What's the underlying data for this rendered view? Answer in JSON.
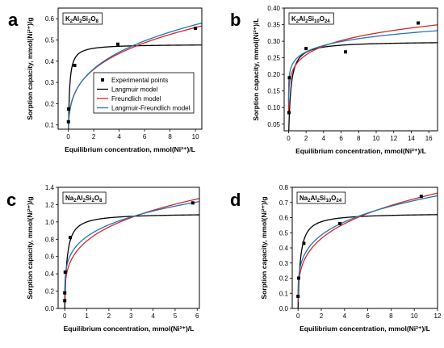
{
  "colors": {
    "langmuir": "#000000",
    "freundlich": "#d62728",
    "lf": "#1f77b4",
    "points": "#000000"
  },
  "legend": {
    "items": [
      {
        "label": "Experimental points",
        "kind": "marker"
      },
      {
        "label": "Langmuir model",
        "kind": "langmuir"
      },
      {
        "label": "Freundlich model",
        "kind": "freundlich"
      },
      {
        "label": "Langmuir-Freundlich model",
        "kind": "lf"
      }
    ]
  },
  "chart_data": [
    {
      "type": "scatter",
      "panel": "a",
      "formula": [
        "K",
        "2",
        "Al",
        "2",
        "Si",
        "2",
        "O",
        "8"
      ],
      "xlabel": "Equilibrium concentration, mmol(Ni²⁺)/L",
      "ylabel": "Sorption capacity, mmol(Ni²⁺)/g",
      "xlim": [
        -0.8,
        10.5
      ],
      "ylim": [
        0.08,
        0.65
      ],
      "xticks": [
        0,
        2,
        4,
        6,
        8,
        10
      ],
      "yticks": [
        0.1,
        0.2,
        0.3,
        0.4,
        0.5,
        0.6
      ],
      "yformat": 1,
      "points": [
        [
          0.01,
          0.115
        ],
        [
          0.02,
          0.175
        ],
        [
          0.5,
          0.38
        ],
        [
          3.9,
          0.48
        ],
        [
          10.0,
          0.555
        ]
      ],
      "models": {
        "langmuir": {
          "qmax": 0.48,
          "K": 12
        },
        "freundlich": {
          "K": 0.3,
          "n": 0.27
        },
        "lf": {
          "K": 0.3,
          "n": 0.28
        }
      },
      "has_legend": true
    },
    {
      "type": "scatter",
      "panel": "b",
      "formula": [
        "K",
        "2",
        "Al",
        "2",
        "Si",
        "10",
        "O",
        "24"
      ],
      "xlabel": "Equilibrium concentration, mmol(Ni²⁺)/L",
      "ylabel": "Sorption capacity, mmol(Ni²⁺)/L",
      "xlim": [
        -0.5,
        17
      ],
      "ylim": [
        0.03,
        0.4
      ],
      "xticks": [
        0,
        2,
        4,
        6,
        8,
        10,
        12,
        14,
        16
      ],
      "yticks": [
        0.05,
        0.1,
        0.15,
        0.2,
        0.25,
        0.3,
        0.35,
        0.4
      ],
      "yformat": 2,
      "points": [
        [
          0.05,
          0.085
        ],
        [
          0.1,
          0.19
        ],
        [
          2.0,
          0.278
        ],
        [
          6.5,
          0.268
        ],
        [
          14.8,
          0.355
        ]
      ],
      "models": {
        "langmuir": {
          "qmax": 0.3,
          "K": 4
        },
        "freundlich": {
          "K": 0.235,
          "n": 0.14
        },
        "lf": {
          "K": 0.25,
          "n": 0.1
        }
      },
      "has_legend": false
    },
    {
      "type": "scatter",
      "panel": "c",
      "formula": [
        "Na",
        "2",
        "Al",
        "2",
        "Si",
        "2",
        "O",
        "8"
      ],
      "xlabel": "Equilibrium concentration, mmol(Ni²⁺)/L",
      "ylabel": "Sorption capacity, mmol(Ni²⁺)/g",
      "xlim": [
        -0.3,
        6.1
      ],
      "ylim": [
        0.0,
        1.4
      ],
      "xticks": [
        0,
        1,
        2,
        3,
        4,
        5,
        6
      ],
      "yticks": [
        0.0,
        0.2,
        0.4,
        0.6,
        0.8,
        1.0,
        1.2,
        1.4
      ],
      "yformat": 1,
      "points": [
        [
          0.0,
          0.09
        ],
        [
          0.0,
          0.18
        ],
        [
          0.02,
          0.42
        ],
        [
          0.25,
          0.82
        ],
        [
          5.8,
          1.22
        ]
      ],
      "models": {
        "langmuir": {
          "qmax": 1.1,
          "K": 10
        },
        "freundlich": {
          "K": 0.78,
          "n": 0.27
        },
        "lf": {
          "K": 0.83,
          "n": 0.22
        }
      },
      "has_legend": false
    },
    {
      "type": "scatter",
      "panel": "d",
      "formula": [
        "Na",
        "2",
        "Al",
        "2",
        "Si",
        "10",
        "O",
        "24"
      ],
      "xlabel": "Equilibrium concentration, mmol(Ni²⁺)/L",
      "ylabel": "Sorption capacity, mmol(Ni²⁺)/g",
      "xlim": [
        -0.5,
        12
      ],
      "ylim": [
        0.0,
        0.8
      ],
      "xticks": [
        0,
        2,
        4,
        6,
        8,
        10,
        12
      ],
      "yticks": [
        0.0,
        0.1,
        0.2,
        0.3,
        0.4,
        0.5,
        0.6,
        0.7,
        0.8
      ],
      "yformat": 1,
      "points": [
        [
          0.0,
          0.08
        ],
        [
          0.05,
          0.2
        ],
        [
          0.5,
          0.43
        ],
        [
          3.6,
          0.56
        ],
        [
          10.6,
          0.74
        ]
      ],
      "models": {
        "langmuir": {
          "qmax": 0.63,
          "K": 5
        },
        "freundlich": {
          "K": 0.38,
          "n": 0.28
        },
        "lf": {
          "K": 0.41,
          "n": 0.24
        }
      },
      "has_legend": false
    }
  ]
}
